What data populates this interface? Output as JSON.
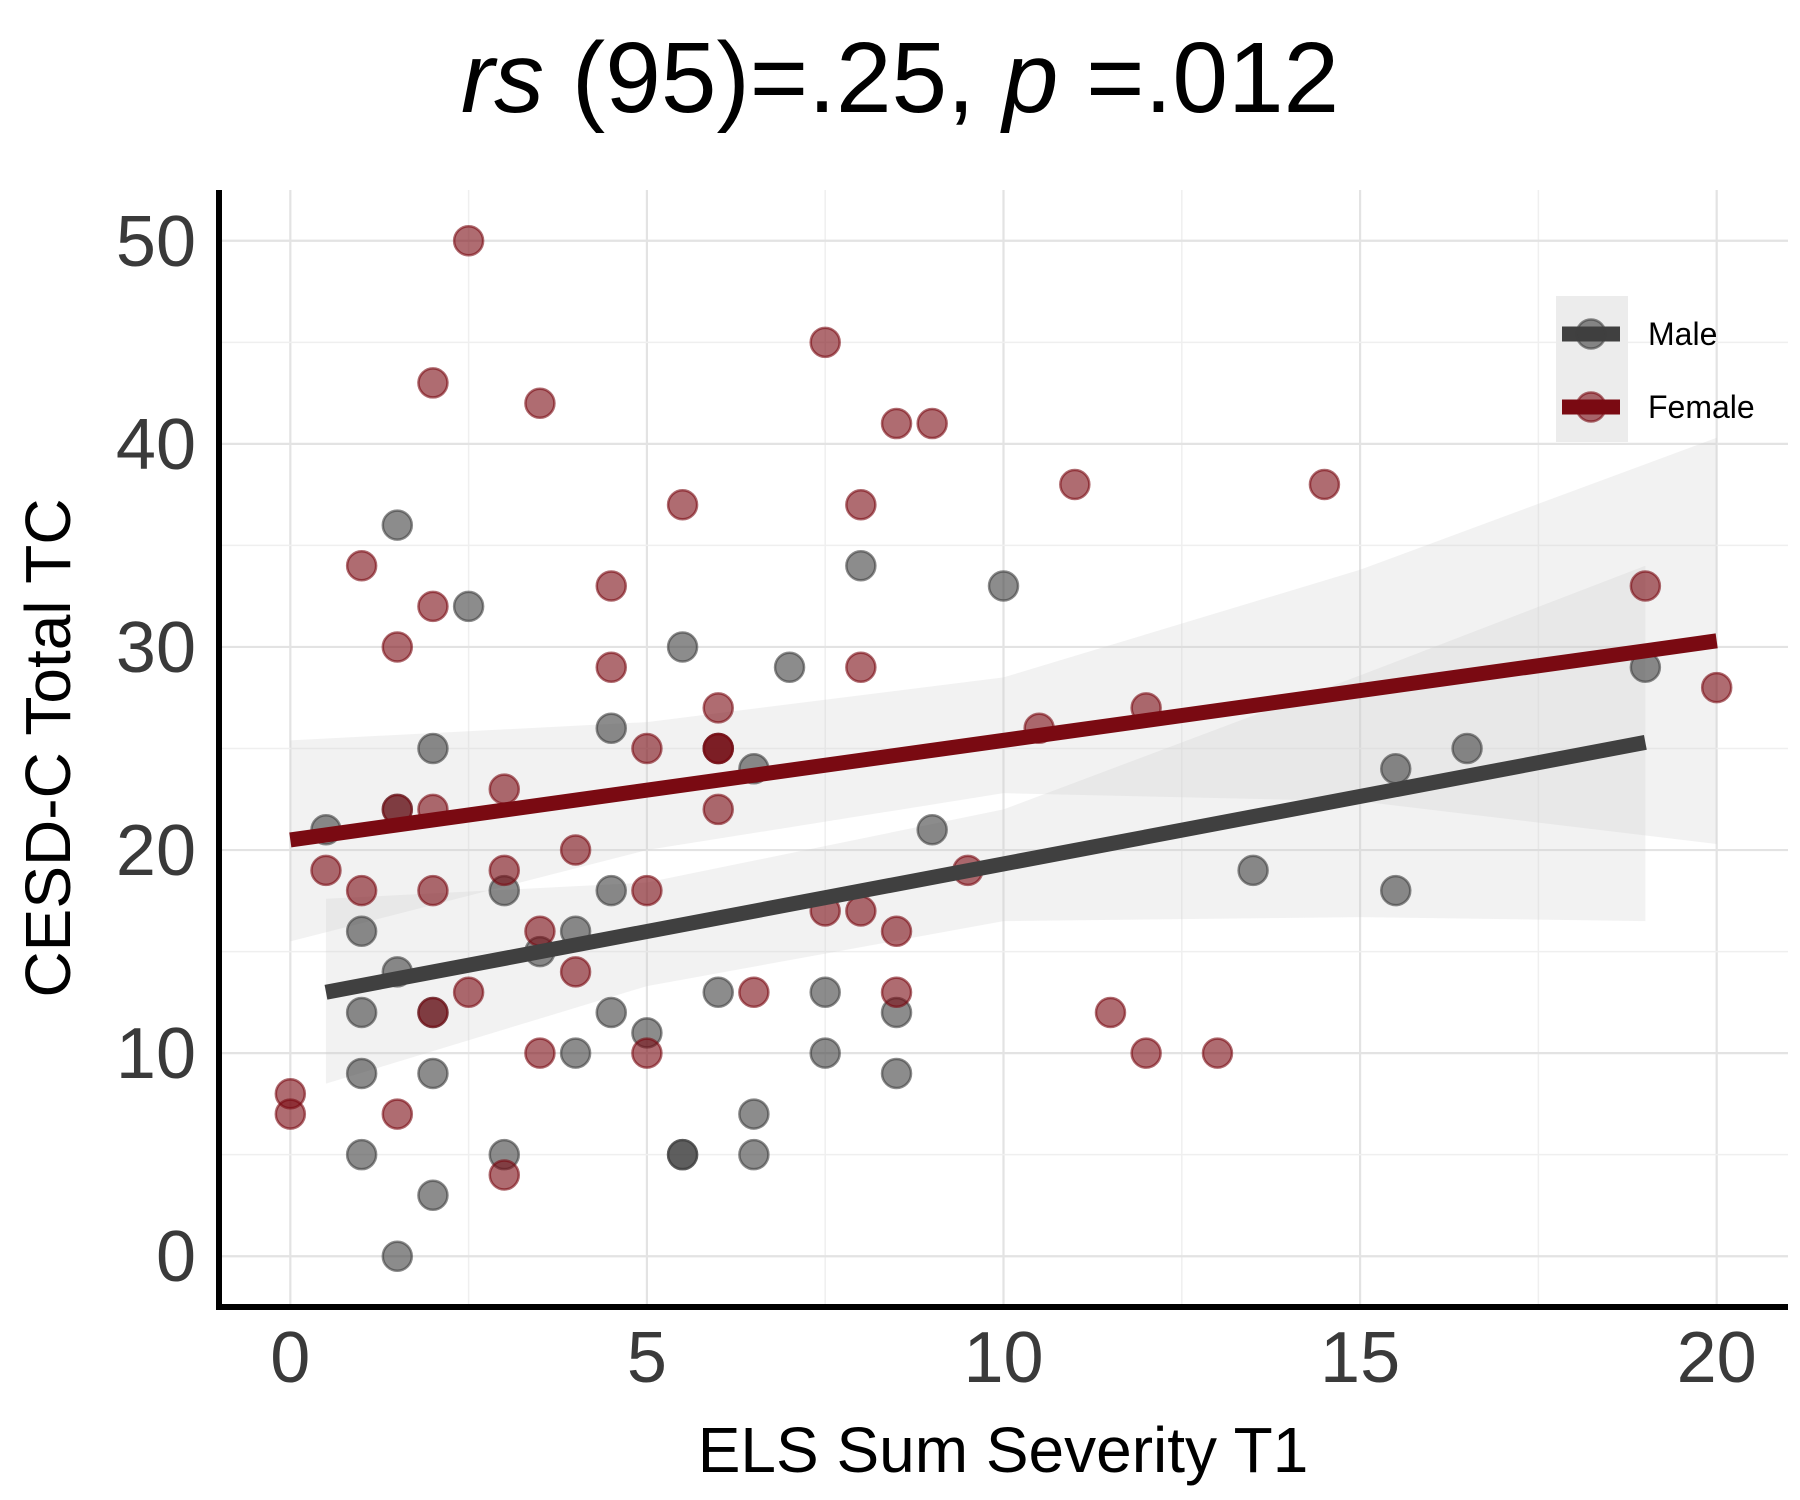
{
  "chart_data": {
    "type": "scatter",
    "title": {
      "rs_symbol": "rs",
      "rs_value": " (95)=.25, ",
      "p_symbol": "p",
      "p_value": " =.012"
    },
    "xlabel": "ELS Sum Severity T1",
    "ylabel": "CESD-C Total TC",
    "xlim": [
      -1,
      21
    ],
    "ylim": [
      -2.5,
      52.5
    ],
    "x_ticks": [
      0,
      5,
      10,
      15,
      20
    ],
    "x_tick_labels": [
      "0",
      "5",
      "10",
      "15",
      "20"
    ],
    "y_ticks": [
      0,
      10,
      20,
      30,
      40,
      50
    ],
    "y_tick_labels": [
      "0",
      "10",
      "20",
      "30",
      "40",
      "50"
    ],
    "grid": true,
    "legend_position": "top-right",
    "series": [
      {
        "name": "Male",
        "color": "#404040",
        "points": [
          [
            0.5,
            21
          ],
          [
            1,
            16
          ],
          [
            1,
            12
          ],
          [
            1,
            9
          ],
          [
            1,
            5
          ],
          [
            1.5,
            36
          ],
          [
            1.5,
            22
          ],
          [
            1.5,
            14
          ],
          [
            1.5,
            0
          ],
          [
            2,
            25
          ],
          [
            2,
            12
          ],
          [
            2,
            9
          ],
          [
            2,
            3
          ],
          [
            2.5,
            32
          ],
          [
            3,
            18
          ],
          [
            3,
            5
          ],
          [
            3.5,
            15
          ],
          [
            4,
            16
          ],
          [
            4,
            10
          ],
          [
            4.5,
            26
          ],
          [
            4.5,
            18
          ],
          [
            4.5,
            12
          ],
          [
            5,
            11
          ],
          [
            5.5,
            30
          ],
          [
            5.5,
            5
          ],
          [
            5.5,
            5
          ],
          [
            6,
            25
          ],
          [
            6,
            13
          ],
          [
            6.5,
            24
          ],
          [
            6.5,
            7
          ],
          [
            6.5,
            5
          ],
          [
            7,
            29
          ],
          [
            7.5,
            13
          ],
          [
            7.5,
            10
          ],
          [
            8,
            34
          ],
          [
            8.5,
            12
          ],
          [
            8.5,
            9
          ],
          [
            9,
            21
          ],
          [
            10,
            33
          ],
          [
            13.5,
            19
          ],
          [
            15.5,
            24
          ],
          [
            15.5,
            18
          ],
          [
            16.5,
            25
          ],
          [
            19,
            29
          ]
        ],
        "fit_line": [
          [
            0.5,
            13.0
          ],
          [
            19,
            25.3
          ]
        ],
        "ci_band": {
          "x": [
            0.5,
            5,
            10,
            15,
            19
          ],
          "lower": [
            8.5,
            13.3,
            16.5,
            16.7,
            16.5
          ],
          "upper": [
            17.6,
            18.4,
            22.0,
            28.6,
            34.0
          ]
        }
      },
      {
        "name": "Female",
        "color": "#7a0a12",
        "points": [
          [
            0,
            8
          ],
          [
            0,
            7
          ],
          [
            0.5,
            19
          ],
          [
            1,
            34
          ],
          [
            1,
            18
          ],
          [
            1.5,
            30
          ],
          [
            1.5,
            22
          ],
          [
            1.5,
            7
          ],
          [
            2,
            43
          ],
          [
            2,
            32
          ],
          [
            2,
            22
          ],
          [
            2,
            18
          ],
          [
            2,
            12
          ],
          [
            2.5,
            50
          ],
          [
            2.5,
            13
          ],
          [
            3,
            23
          ],
          [
            3,
            19
          ],
          [
            3,
            4
          ],
          [
            3.5,
            42
          ],
          [
            3.5,
            16
          ],
          [
            3.5,
            10
          ],
          [
            4,
            20
          ],
          [
            4,
            14
          ],
          [
            4.5,
            33
          ],
          [
            4.5,
            29
          ],
          [
            5,
            25
          ],
          [
            5,
            18
          ],
          [
            5,
            10
          ],
          [
            5.5,
            37
          ],
          [
            6,
            27
          ],
          [
            6,
            25
          ],
          [
            6,
            25
          ],
          [
            6,
            22
          ],
          [
            6.5,
            13
          ],
          [
            7.5,
            45
          ],
          [
            7.5,
            17
          ],
          [
            8,
            37
          ],
          [
            8,
            29
          ],
          [
            8,
            17
          ],
          [
            8.5,
            41
          ],
          [
            8.5,
            16
          ],
          [
            8.5,
            13
          ],
          [
            9,
            41
          ],
          [
            9.5,
            19
          ],
          [
            10.5,
            26
          ],
          [
            11,
            38
          ],
          [
            11.5,
            12
          ],
          [
            12,
            27
          ],
          [
            12,
            10
          ],
          [
            13,
            10
          ],
          [
            14.5,
            38
          ],
          [
            19,
            33
          ],
          [
            20,
            28
          ]
        ],
        "fit_line": [
          [
            0,
            20.5
          ],
          [
            20,
            30.3
          ]
        ],
        "ci_band": {
          "x": [
            0,
            5,
            10,
            15,
            20
          ],
          "lower": [
            15.5,
            20.0,
            22.8,
            22.4,
            20.3
          ],
          "upper": [
            25.4,
            26.3,
            28.5,
            33.8,
            40.3
          ]
        }
      }
    ]
  }
}
